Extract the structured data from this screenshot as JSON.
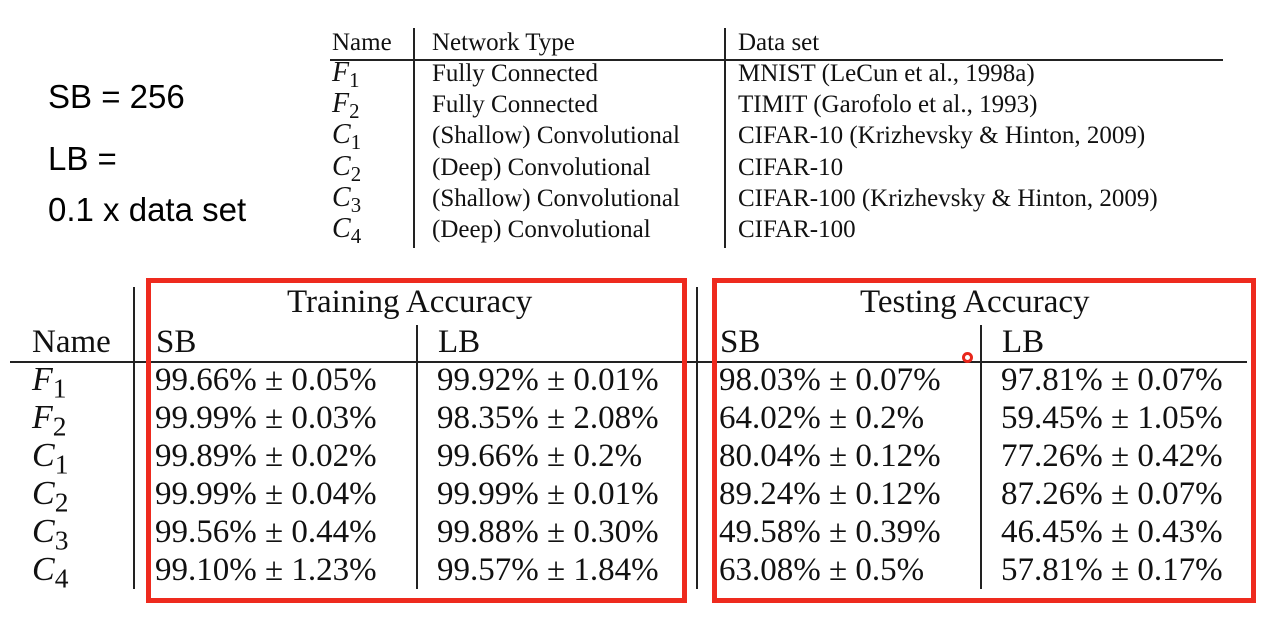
{
  "notes": {
    "sb": "SB = 256",
    "lb_line1": "LB =",
    "lb_line2": "0.1 x data set"
  },
  "networks_table": {
    "headers": [
      "Name",
      "Network Type",
      "Data set"
    ],
    "rows": [
      {
        "letter": "F",
        "sub": "1",
        "type": "Fully Connected",
        "dataset": "MNIST (LeCun et al., 1998a)"
      },
      {
        "letter": "F",
        "sub": "2",
        "type": "Fully Connected",
        "dataset": "TIMIT (Garofolo et al., 1993)"
      },
      {
        "letter": "C",
        "sub": "1",
        "type": "(Shallow) Convolutional",
        "dataset": "CIFAR-10 (Krizhevsky & Hinton, 2009)"
      },
      {
        "letter": "C",
        "sub": "2",
        "type": "(Deep) Convolutional",
        "dataset": "CIFAR-10"
      },
      {
        "letter": "C",
        "sub": "3",
        "type": "(Shallow) Convolutional",
        "dataset": "CIFAR-100 (Krizhevsky & Hinton, 2009)"
      },
      {
        "letter": "C",
        "sub": "4",
        "type": "(Deep) Convolutional",
        "dataset": "CIFAR-100"
      }
    ]
  },
  "accuracy_table": {
    "group_training": "Training Accuracy",
    "group_testing": "Testing Accuracy",
    "name_header": "Name",
    "sb": "SB",
    "lb": "LB",
    "rows": [
      {
        "letter": "F",
        "sub": "1",
        "train_sb": "99.66% ± 0.05%",
        "train_lb": "99.92% ± 0.01%",
        "test_sb": "98.03% ± 0.07%",
        "test_lb": "97.81% ± 0.07%"
      },
      {
        "letter": "F",
        "sub": "2",
        "train_sb": "99.99% ± 0.03%",
        "train_lb": "98.35% ± 2.08%",
        "test_sb": "64.02% ± 0.2%",
        "test_lb": "59.45% ± 1.05%"
      },
      {
        "letter": "C",
        "sub": "1",
        "train_sb": "99.89% ± 0.02%",
        "train_lb": "99.66% ± 0.2%",
        "test_sb": "80.04% ± 0.12%",
        "test_lb": "77.26% ± 0.42%"
      },
      {
        "letter": "C",
        "sub": "2",
        "train_sb": "99.99% ± 0.04%",
        "train_lb": "99.99% ± 0.01%",
        "test_sb": "89.24% ± 0.12%",
        "test_lb": "87.26% ± 0.07%"
      },
      {
        "letter": "C",
        "sub": "3",
        "train_sb": "99.56% ± 0.44%",
        "train_lb": "99.88% ± 0.30%",
        "test_sb": "49.58% ± 0.39%",
        "test_lb": "46.45% ± 0.43%"
      },
      {
        "letter": "C",
        "sub": "4",
        "train_sb": "99.10% ± 1.23%",
        "train_lb": "99.57% ± 1.84%",
        "test_sb": "63.08% ± 0.5%",
        "test_lb": "57.81% ± 0.17%"
      }
    ]
  },
  "colors": {
    "highlight_box": "#ee2a1e",
    "cursor": "#e8261b"
  }
}
